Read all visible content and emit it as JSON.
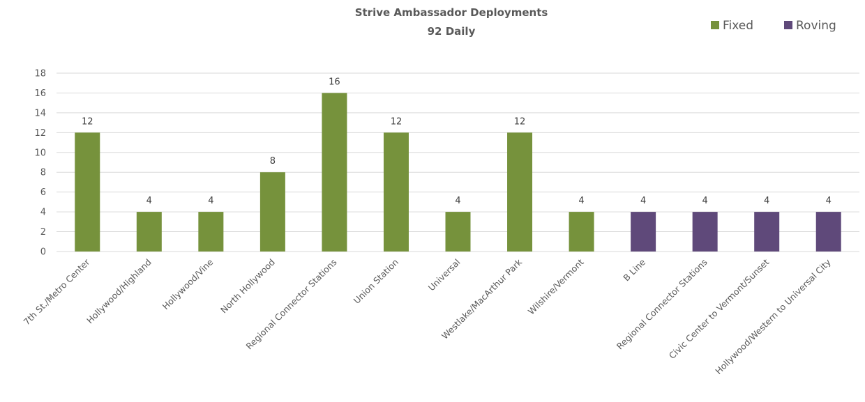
{
  "chart_data": {
    "type": "bar",
    "title": "Strive Ambassador Deployments",
    "subtitle": "92 Daily",
    "xlabel": "",
    "ylabel": "",
    "ylim": [
      0,
      18
    ],
    "yticks": [
      "0",
      "2",
      "4",
      "6",
      "8",
      "10",
      "12",
      "14",
      "16",
      "18"
    ],
    "grid": true,
    "legend_position": "top-right",
    "categories": [
      "7th St./Metro Center",
      "Hollywood/Highland",
      "Hollywood/Vine",
      "North Hollywood",
      "Regional Connector Stations",
      "Union Station",
      "Universal",
      "Westlake/MacArthur Park",
      "Wilshire/Vermont",
      "B Line",
      "Regional Connector Stations",
      "Civic Center to Vermont/Sunset",
      "Hollywood/Western to Universal City"
    ],
    "series": [
      {
        "name": "Fixed",
        "color": "#76923c",
        "values": [
          12,
          4,
          4,
          8,
          16,
          12,
          4,
          12,
          4,
          null,
          null,
          null,
          null
        ]
      },
      {
        "name": "Roving",
        "color": "#5f497a",
        "values": [
          null,
          null,
          null,
          null,
          null,
          null,
          null,
          null,
          null,
          4,
          4,
          4,
          4
        ]
      }
    ]
  }
}
